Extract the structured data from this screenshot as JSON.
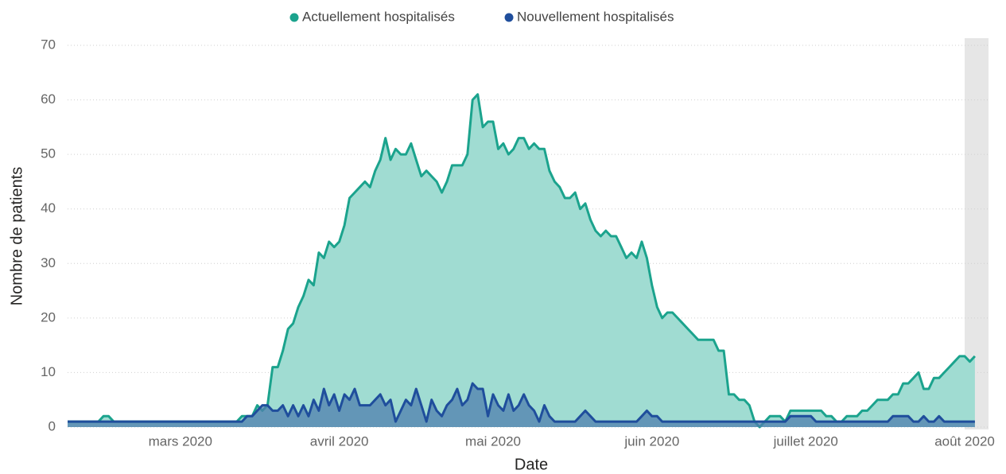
{
  "chart_data": {
    "type": "area",
    "x_label": "Date",
    "y_label": "Nombre de patients",
    "ylim": [
      0,
      70
    ],
    "yticks": [
      0,
      10,
      20,
      30,
      40,
      50,
      60,
      70
    ],
    "grid": true,
    "legend": "top",
    "categories": [
      null,
      null,
      null,
      null,
      null,
      null,
      null,
      null,
      null,
      null,
      null,
      null,
      null,
      null,
      null,
      null,
      null,
      null,
      null,
      null,
      null,
      null,
      "mars 2020",
      null,
      null,
      null,
      null,
      null,
      null,
      null,
      null,
      null,
      null,
      null,
      null,
      null,
      null,
      null,
      null,
      null,
      null,
      null,
      null,
      null,
      null,
      null,
      null,
      null,
      null,
      null,
      null,
      null,
      null,
      "avril 2020",
      null,
      null,
      null,
      null,
      null,
      null,
      null,
      null,
      null,
      null,
      null,
      null,
      null,
      null,
      null,
      null,
      null,
      null,
      null,
      null,
      null,
      null,
      null,
      null,
      null,
      null,
      null,
      null,
      null,
      "mai 2020",
      null,
      null,
      null,
      null,
      null,
      null,
      null,
      null,
      null,
      null,
      null,
      null,
      null,
      null,
      null,
      null,
      null,
      null,
      null,
      null,
      null,
      null,
      null,
      null,
      null,
      null,
      null,
      null,
      null,
      null,
      "juin 2020",
      null,
      null,
      null,
      null,
      null,
      null,
      null,
      null,
      null,
      null,
      null,
      null,
      null,
      null,
      null,
      null,
      null,
      null,
      null,
      null,
      null,
      null,
      null,
      null,
      null,
      null,
      null,
      null,
      null,
      "juillet 2020",
      null,
      null,
      null,
      null,
      null,
      null,
      null,
      null,
      null,
      null,
      null,
      null,
      null,
      null,
      null,
      null,
      null,
      null,
      null,
      null,
      null,
      null,
      null,
      null,
      null,
      null,
      null,
      null,
      null,
      null,
      "août 2020",
      null,
      null
    ],
    "series": [
      {
        "name": "Actuellement hospitalisés",
        "color": "#1ba38d",
        "fill": "#a0dcd2",
        "values": [
          1,
          1,
          1,
          1,
          1,
          1,
          1,
          2,
          2,
          1,
          1,
          1,
          1,
          1,
          1,
          1,
          1,
          1,
          1,
          1,
          1,
          1,
          1,
          1,
          1,
          1,
          1,
          1,
          1,
          1,
          1,
          1,
          1,
          1,
          2,
          2,
          2,
          4,
          3,
          4,
          11,
          11,
          14,
          18,
          19,
          22,
          24,
          27,
          26,
          32,
          31,
          34,
          33,
          34,
          37,
          42,
          43,
          44,
          45,
          44,
          47,
          49,
          53,
          49,
          51,
          50,
          50,
          52,
          49,
          46,
          47,
          46,
          45,
          43,
          45,
          48,
          48,
          48,
          50,
          60,
          61,
          55,
          56,
          56,
          51,
          52,
          50,
          51,
          53,
          53,
          51,
          52,
          51,
          51,
          47,
          45,
          44,
          42,
          42,
          43,
          40,
          41,
          38,
          36,
          35,
          36,
          35,
          35,
          33,
          31,
          32,
          31,
          34,
          31,
          26,
          22,
          20,
          21,
          21,
          20,
          19,
          18,
          17,
          16,
          16,
          16,
          16,
          14,
          14,
          6,
          6,
          5,
          5,
          4,
          1,
          0,
          1,
          2,
          2,
          2,
          1,
          3,
          3,
          3,
          3,
          3,
          3,
          3,
          2,
          2,
          1,
          1,
          2,
          2,
          2,
          3,
          3,
          4,
          5,
          5,
          5,
          6,
          6,
          8,
          8,
          9,
          10,
          7,
          7,
          9,
          9,
          10,
          11,
          12,
          13,
          13,
          12,
          13
        ]
      },
      {
        "name": "Nouvellement hospitalisés",
        "color": "#1f4e9c",
        "fill": "#4f7fae",
        "values": [
          1,
          1,
          1,
          1,
          1,
          1,
          1,
          1,
          1,
          1,
          1,
          1,
          1,
          1,
          1,
          1,
          1,
          1,
          1,
          1,
          1,
          1,
          1,
          1,
          1,
          1,
          1,
          1,
          1,
          1,
          1,
          1,
          1,
          1,
          1,
          2,
          2,
          3,
          4,
          4,
          3,
          3,
          4,
          2,
          4,
          2,
          4,
          2,
          5,
          3,
          7,
          4,
          6,
          3,
          6,
          5,
          7,
          4,
          4,
          4,
          5,
          6,
          4,
          5,
          1,
          3,
          5,
          4,
          7,
          4,
          1,
          5,
          3,
          2,
          4,
          5,
          7,
          4,
          5,
          8,
          7,
          7,
          2,
          6,
          4,
          3,
          6,
          3,
          4,
          6,
          4,
          3,
          1,
          4,
          2,
          1,
          1,
          1,
          1,
          1,
          2,
          3,
          2,
          1,
          1,
          1,
          1,
          1,
          1,
          1,
          1,
          1,
          2,
          3,
          2,
          2,
          1,
          1,
          1,
          1,
          1,
          1,
          1,
          1,
          1,
          1,
          1,
          1,
          1,
          1,
          1,
          1,
          1,
          1,
          1,
          1,
          1,
          1,
          1,
          1,
          1,
          2,
          2,
          2,
          2,
          2,
          1,
          1,
          1,
          1,
          1,
          1,
          1,
          1,
          1,
          1,
          1,
          1,
          1,
          1,
          1,
          2,
          2,
          2,
          2,
          1,
          1,
          2,
          1,
          1,
          2,
          1,
          1,
          1,
          1,
          1,
          1,
          1
        ]
      }
    ]
  }
}
